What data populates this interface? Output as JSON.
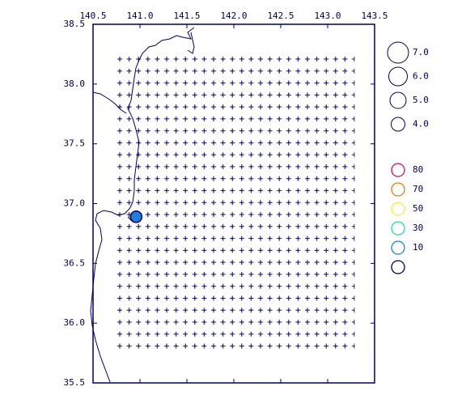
{
  "chart_data": {
    "type": "map",
    "xlim": [
      140.5,
      143.5
    ],
    "ylim": [
      35.5,
      38.5
    ],
    "xticks": [
      {
        "value": 140.5,
        "label": "140.5"
      },
      {
        "value": 141.0,
        "label": "141.0"
      },
      {
        "value": 141.5,
        "label": "141.5"
      },
      {
        "value": 142.0,
        "label": "142.0"
      },
      {
        "value": 142.5,
        "label": "142.5"
      },
      {
        "value": 143.0,
        "label": "143.0"
      },
      {
        "value": 143.5,
        "label": "143.5"
      }
    ],
    "yticks": [
      {
        "value": 35.5,
        "label": "35.5"
      },
      {
        "value": 36.0,
        "label": "36.0"
      },
      {
        "value": 36.5,
        "label": "36.5"
      },
      {
        "value": 37.0,
        "label": "37.0"
      },
      {
        "value": 37.5,
        "label": "37.5"
      },
      {
        "value": 38.0,
        "label": "38.0"
      },
      {
        "value": 38.5,
        "label": "38.5"
      }
    ],
    "events": {
      "lon": [
        140.96
      ],
      "lat": [
        36.89
      ],
      "magnitude": [
        3.0
      ],
      "color": "#2080e0"
    },
    "magnitude_legend": [
      {
        "value": 7.0,
        "label": "7.0"
      },
      {
        "value": 6.0,
        "label": "6.0"
      },
      {
        "value": 5.0,
        "label": "5.0"
      },
      {
        "value": 4.0,
        "label": "4.0"
      }
    ],
    "depth_legend": {
      "values": [
        80,
        70,
        50,
        30,
        10,
        null
      ],
      "colors": [
        "#cc1060",
        "#e08020",
        "#f0f040",
        "#20e090",
        "#2080e0",
        "#000060"
      ]
    }
  }
}
